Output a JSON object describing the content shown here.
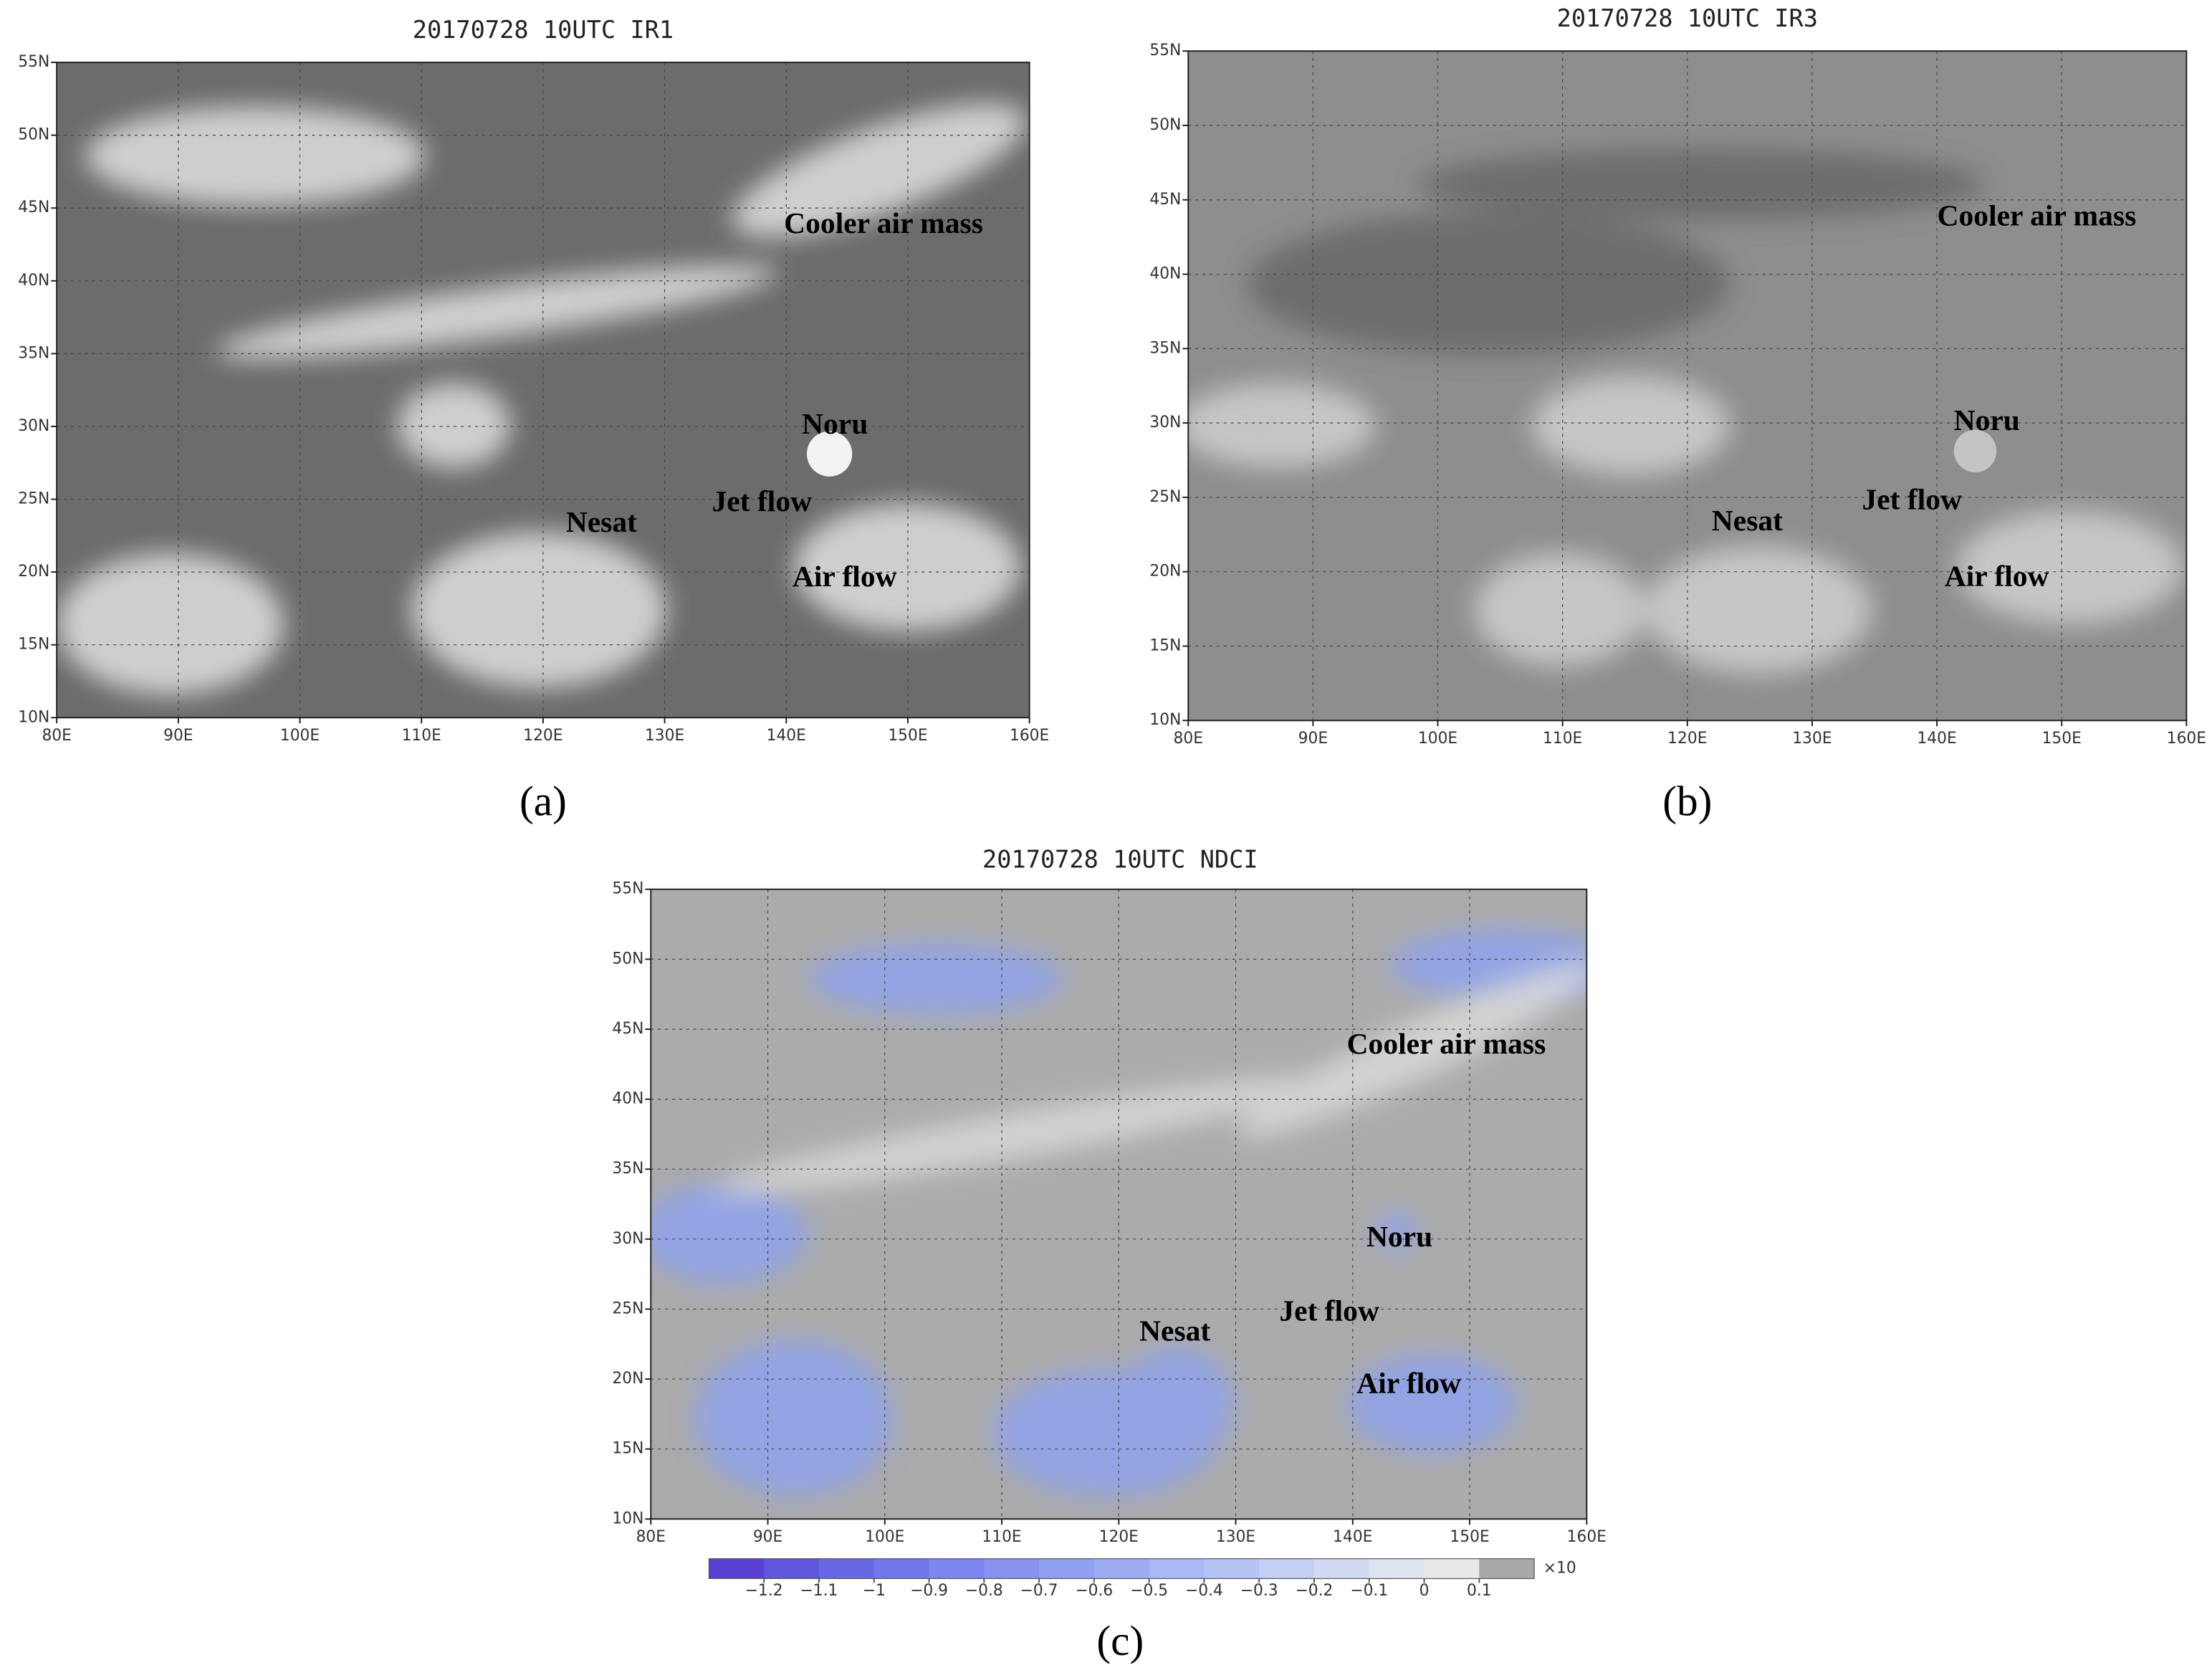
{
  "panels": [
    {
      "title": "20170728 10UTC IR1",
      "label": "(a)",
      "annotations": [
        "Cooler air mass",
        "Noru",
        "Jet flow",
        "Nesat",
        "Air flow"
      ]
    },
    {
      "title": "20170728 10UTC IR3",
      "label": "(b)",
      "annotations": [
        "Cooler air mass",
        "Noru",
        "Jet flow",
        "Nesat",
        "Air flow"
      ]
    },
    {
      "title": "20170728 10UTC NDCI",
      "label": "(c)",
      "annotations": [
        "Cooler air mass",
        "Noru",
        "Jet flow",
        "Nesat",
        "Air flow"
      ]
    }
  ],
  "x_axis_labels": [
    "80E",
    "90E",
    "100E",
    "110E",
    "120E",
    "130E",
    "140E",
    "150E",
    "160E"
  ],
  "y_axis_labels": [
    "10N",
    "15N",
    "20N",
    "25N",
    "30N",
    "35N",
    "40N",
    "45N",
    "50N",
    "55N"
  ],
  "colorbar": {
    "labels": [
      "−1.2",
      "−1.1",
      "−1",
      "−0.9",
      "−0.8",
      "−0.7",
      "−0.6",
      "−0.5",
      "−0.4",
      "−0.3",
      "−0.2",
      "−0.1",
      "0",
      "0.1"
    ],
    "colors": [
      "#5a40d2",
      "#5f56dc",
      "#6868e4",
      "#7278ea",
      "#7c86ee",
      "#8694f0",
      "#90a0f2",
      "#9cacf3",
      "#a8b8f4",
      "#b6c4f4",
      "#c4cff4",
      "#d2daf2",
      "#dde3ef",
      "#e8e8e8",
      "#a9a9a9"
    ],
    "multiplier": "×10"
  }
}
